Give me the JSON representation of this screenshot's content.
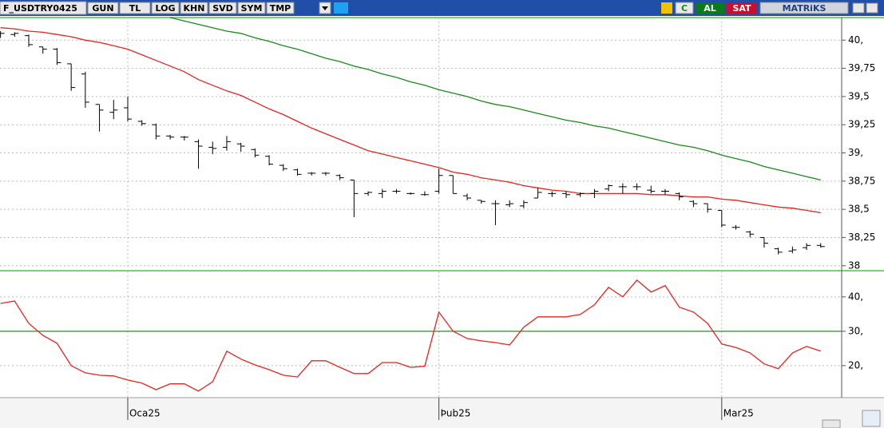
{
  "toolbar": {
    "symbol": "F_USDTRY0425",
    "buttons": [
      "GUN",
      "TL",
      "LOG",
      "KHN",
      "SVD",
      "SYM",
      "TMP"
    ],
    "refresh": "C",
    "buy": "AL",
    "sell": "SAT",
    "brand": "MATRiKS"
  },
  "chart_data": [
    {
      "type": "ohlc",
      "color": "#000000",
      "categories": [
        null,
        null,
        null,
        null,
        null,
        null,
        null,
        null,
        null,
        "Oca25",
        null,
        null,
        null,
        null,
        null,
        null,
        null,
        null,
        null,
        null,
        null,
        null,
        null,
        null,
        null,
        null,
        null,
        null,
        null,
        null,
        null,
        "Þub25",
        null,
        null,
        null,
        null,
        null,
        null,
        null,
        null,
        null,
        null,
        null,
        null,
        null,
        null,
        null,
        null,
        null,
        null,
        null,
        "Mar25",
        null,
        null,
        null,
        null,
        null,
        null,
        null
      ],
      "open": [
        40.06,
        40.05,
        40.04,
        39.94,
        39.92,
        39.79,
        39.7,
        39.43,
        39.36,
        39.4,
        39.28,
        39.25,
        39.15,
        39.14,
        39.1,
        39.05,
        39.05,
        39.08,
        39.03,
        38.97,
        38.89,
        38.85,
        38.82,
        38.82,
        38.8,
        38.76,
        38.64,
        38.64,
        38.66,
        38.64,
        38.63,
        38.66,
        38.8,
        38.62,
        38.58,
        38.55,
        38.54,
        38.53,
        38.6,
        38.64,
        38.64,
        38.63,
        38.64,
        38.68,
        38.7,
        38.7,
        38.67,
        38.66,
        38.64,
        38.57,
        38.55,
        38.49,
        38.34,
        38.3,
        38.25,
        38.15,
        38.13,
        38.16,
        38.18
      ],
      "high": [
        40.08,
        40.07,
        40.05,
        39.94,
        39.93,
        39.79,
        39.72,
        39.43,
        39.47,
        39.5,
        39.29,
        39.26,
        39.16,
        39.15,
        39.12,
        39.1,
        39.15,
        39.09,
        39.04,
        38.98,
        38.9,
        38.86,
        38.83,
        38.83,
        38.81,
        38.76,
        38.66,
        38.68,
        38.68,
        38.65,
        38.66,
        38.86,
        38.8,
        38.64,
        38.58,
        38.58,
        38.58,
        38.58,
        38.69,
        38.66,
        38.66,
        38.65,
        38.68,
        38.72,
        38.73,
        38.73,
        38.71,
        38.68,
        38.65,
        38.58,
        38.55,
        38.49,
        38.36,
        38.31,
        38.25,
        38.16,
        38.17,
        38.2,
        38.2
      ],
      "low": [
        40.02,
        40.03,
        39.94,
        39.88,
        39.78,
        39.55,
        39.4,
        39.19,
        39.3,
        39.28,
        39.24,
        39.12,
        39.12,
        39.11,
        38.86,
        38.99,
        39.02,
        39.01,
        38.96,
        38.89,
        38.84,
        38.8,
        38.8,
        38.8,
        38.76,
        38.43,
        38.62,
        38.6,
        38.64,
        38.63,
        38.62,
        38.64,
        38.64,
        38.58,
        38.55,
        38.36,
        38.52,
        38.51,
        38.6,
        38.61,
        38.6,
        38.61,
        38.6,
        38.66,
        38.64,
        38.67,
        38.64,
        38.63,
        38.58,
        38.52,
        38.47,
        38.34,
        38.32,
        38.25,
        38.16,
        38.1,
        38.11,
        38.14,
        38.16
      ],
      "close": [
        40.06,
        40.06,
        39.96,
        39.92,
        39.8,
        39.58,
        39.45,
        39.38,
        39.38,
        39.3,
        39.26,
        39.15,
        39.14,
        39.14,
        39.06,
        39.04,
        39.1,
        39.06,
        38.98,
        38.9,
        38.86,
        38.81,
        38.82,
        38.82,
        38.78,
        38.64,
        38.65,
        38.66,
        38.66,
        38.64,
        38.63,
        38.8,
        38.64,
        38.6,
        38.57,
        38.55,
        38.55,
        38.56,
        38.65,
        38.64,
        38.63,
        38.64,
        38.66,
        38.71,
        38.7,
        38.7,
        38.66,
        38.66,
        38.61,
        38.55,
        38.5,
        38.36,
        38.34,
        38.28,
        38.2,
        38.12,
        38.14,
        38.18,
        38.17
      ],
      "series": [
        {
          "color": "#e8231f",
          "values": [
            40.11,
            40.1,
            40.08,
            40.07,
            40.05,
            40.03,
            40.0,
            39.98,
            39.95,
            39.92,
            39.87,
            39.82,
            39.77,
            39.72,
            39.65,
            39.6,
            39.55,
            39.51,
            39.45,
            39.39,
            39.34,
            39.28,
            39.22,
            39.17,
            39.12,
            39.07,
            39.02,
            38.99,
            38.96,
            38.93,
            38.9,
            38.87,
            38.83,
            38.81,
            38.78,
            38.76,
            38.74,
            38.71,
            38.69,
            38.67,
            38.66,
            38.64,
            38.64,
            38.64,
            38.64,
            38.64,
            38.63,
            38.63,
            38.62,
            38.61,
            38.61,
            38.59,
            38.58,
            38.56,
            38.54,
            38.52,
            38.51,
            38.49,
            38.47
          ]
        },
        {
          "color": "#1a8a1a",
          "values": [
            null,
            null,
            null,
            null,
            null,
            null,
            null,
            null,
            null,
            null,
            null,
            null,
            40.2,
            40.17,
            40.14,
            40.11,
            40.08,
            40.06,
            40.02,
            39.99,
            39.95,
            39.92,
            39.88,
            39.84,
            39.81,
            39.77,
            39.74,
            39.7,
            39.67,
            39.63,
            39.6,
            39.56,
            39.53,
            39.5,
            39.46,
            39.43,
            39.41,
            39.38,
            39.35,
            39.32,
            39.29,
            39.27,
            39.24,
            39.22,
            39.19,
            39.16,
            39.13,
            39.1,
            39.07,
            39.05,
            39.02,
            38.98,
            38.95,
            38.92,
            38.88,
            38.85,
            38.82,
            38.79,
            38.76
          ]
        }
      ],
      "ylim": [
        37.97,
        40.2
      ],
      "yticks": [
        {
          "value": 40,
          "label": "40,"
        },
        {
          "value": 39.75,
          "label": "39,75"
        },
        {
          "value": 39.5,
          "label": "39,5"
        },
        {
          "value": 39.25,
          "label": "39,25"
        },
        {
          "value": 39,
          "label": "39,"
        },
        {
          "value": 38.75,
          "label": "38,75"
        },
        {
          "value": 38.5,
          "label": "38,5"
        },
        {
          "value": 38.25,
          "label": "38,25"
        },
        38
      ],
      "grid": true
    },
    {
      "type": "line",
      "color": "#e8231f",
      "values": [
        38.1,
        38.8,
        32.3,
        28.8,
        26.5,
        20.0,
        17.9,
        17.2,
        17.0,
        15.8,
        14.9,
        13.0,
        14.7,
        14.7,
        12.6,
        15.3,
        24.2,
        21.9,
        20.2,
        18.8,
        17.2,
        16.7,
        21.4,
        21.4,
        19.5,
        17.7,
        17.7,
        20.9,
        20.9,
        19.5,
        19.8,
        35.6,
        30.0,
        27.9,
        27.2,
        26.7,
        26.0,
        31.2,
        34.2,
        34.2,
        34.2,
        34.9,
        37.7,
        42.8,
        40.0,
        44.9,
        41.4,
        43.3,
        37.0,
        35.6,
        32.3,
        26.3,
        25.3,
        23.7,
        20.5,
        19.1,
        23.7,
        25.6,
        24.2
      ],
      "reference_line": {
        "value": 30,
        "color": "#2e8b2e"
      },
      "ylim": [
        10.9,
        47.4
      ],
      "yticks": [
        {
          "value": 40,
          "label": "40,"
        },
        {
          "value": 30,
          "label": "30,"
        },
        {
          "value": 20,
          "label": "20,"
        }
      ],
      "grid": true
    }
  ]
}
